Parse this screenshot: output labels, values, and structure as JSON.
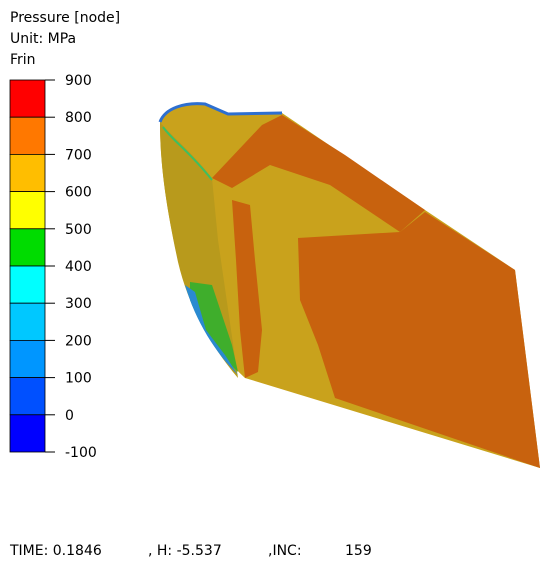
{
  "legend": {
    "title": "Pressure [node]",
    "unit": "Unit: MPa",
    "label": "Frin",
    "ticks": [
      "900",
      "800",
      "700",
      "600",
      "500",
      "400",
      "300",
      "200",
      "100",
      "0",
      "-100"
    ],
    "colors": [
      "#ff0000",
      "#ff7800",
      "#ffbe00",
      "#ffff00",
      "#00dc00",
      "#00ffff",
      "#00c8ff",
      "#0096ff",
      "#0050ff",
      "#0000ff"
    ]
  },
  "status": {
    "time": "TIME: 0.1846",
    "h": ", H: -5.537",
    "inc_label": ",INC:",
    "inc": "159"
  }
}
